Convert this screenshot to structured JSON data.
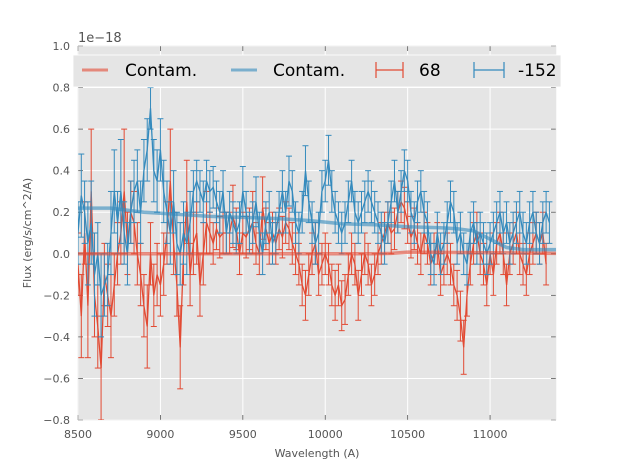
{
  "chart_data": {
    "type": "line",
    "title": "",
    "xlabel": "Wavelength (A)",
    "ylabel": "Flux (erg/s/cm^2/A)",
    "y_offset_label": "1e−18",
    "xlim": [
      8500,
      11400
    ],
    "ylim": [
      -0.8,
      1.0
    ],
    "x_ticks": [
      8500,
      9000,
      9500,
      10000,
      10500,
      11000
    ],
    "x_tick_labels": [
      "8500",
      "9000",
      "9500",
      "10000",
      "10500",
      "11000"
    ],
    "y_ticks": [
      -0.8,
      -0.6,
      -0.4,
      -0.2,
      0.0,
      0.2,
      0.4,
      0.6,
      0.8,
      1.0
    ],
    "y_tick_labels": [
      "−0.8",
      "−0.6",
      "−0.4",
      "−0.2",
      "0.0",
      "0.2",
      "0.4",
      "0.6",
      "0.8",
      "1.0"
    ],
    "grid": true,
    "legend_position": "top",
    "colors": {
      "red": "#E24A33",
      "blue": "#348ABD",
      "background": "#E5E5E5",
      "grid": "#FFFFFF"
    },
    "x_start": 8500,
    "x_step": 20,
    "series": [
      {
        "name": "Contam.",
        "kind": "contamination",
        "color": "#E24A33",
        "x": [
          8500,
          9000,
          9500,
          10000,
          10300,
          10400,
          10500,
          11000,
          11400
        ],
        "y": [
          0.0,
          0.0,
          0.0,
          0.0,
          0.0,
          0.002,
          0.008,
          0.005,
          0.002
        ]
      },
      {
        "name": "Contam.",
        "kind": "contamination",
        "color": "#348ABD",
        "x": [
          8500,
          8700,
          8900,
          9100,
          9300,
          9500,
          9700,
          9900,
          10100,
          10300,
          10500,
          10700,
          10800,
          10900,
          11000,
          11100,
          11200,
          11400
        ],
        "y": [
          0.22,
          0.22,
          0.2,
          0.19,
          0.18,
          0.175,
          0.17,
          0.16,
          0.145,
          0.14,
          0.13,
          0.125,
          0.12,
          0.11,
          0.07,
          0.03,
          0.02,
          0.02
        ]
      },
      {
        "name": "68",
        "kind": "errorbar",
        "color": "#E24A33",
        "y": [
          -0.05,
          -0.3,
          0.1,
          -0.25,
          0.3,
          -0.2,
          -0.35,
          -0.55,
          -0.1,
          -0.2,
          -0.3,
          -0.15,
          0.0,
          0.1,
          0.3,
          0.05,
          0.2,
          0.15,
          0.0,
          -0.1,
          -0.25,
          -0.35,
          0.0,
          -0.2,
          -0.1,
          -0.15,
          -0.05,
          0.1,
          0.35,
          0.05,
          -0.15,
          -0.45,
          0.0,
          0.25,
          -0.1,
          0.05,
          0.1,
          -0.15,
          0.0,
          0.15,
          0.1,
          0.05,
          0.12,
          0.08,
          0.1,
          0.1,
          0.1,
          0.18,
          0.12,
          0.0,
          0.1,
          0.08,
          0.12,
          0.15,
          0.05,
          0.0,
          0.22,
          0.12,
          0.05,
          0.1,
          0.05,
          0.12,
          0.08,
          0.15,
          0.12,
          0.05,
          0.0,
          -0.05,
          -0.15,
          -0.2,
          -0.1,
          0.0,
          0.05,
          -0.1,
          -0.05,
          0.0,
          -0.05,
          -0.15,
          -0.2,
          -0.15,
          -0.25,
          -0.22,
          -0.1,
          0.0,
          -0.05,
          -0.2,
          -0.1,
          0.0,
          -0.05,
          -0.15,
          -0.1,
          0.0,
          0.05,
          0.1,
          0.15,
          0.1,
          0.12,
          0.2,
          0.25,
          0.22,
          0.15,
          0.08,
          0.12,
          0.05,
          0.0,
          0.1,
          0.05,
          -0.05,
          0.0,
          0.05,
          -0.1,
          -0.05,
          0.0,
          -0.05,
          -0.15,
          -0.2,
          -0.3,
          -0.45,
          -0.2,
          -0.05,
          0.05,
          0.1,
          0.0,
          -0.05,
          -0.15,
          0.0,
          -0.1,
          0.05,
          0.1,
          0.0,
          -0.15,
          0.0,
          0.05,
          0.1,
          0.0,
          -0.05,
          -0.1,
          0.0,
          0.05,
          0.1,
          0.05,
          0.1,
          -0.05
        ],
        "yerr": [
          0.15,
          0.2,
          0.15,
          0.25,
          0.3,
          0.2,
          0.2,
          0.25,
          0.15,
          0.15,
          0.2,
          0.15,
          0.15,
          0.15,
          0.3,
          0.15,
          0.15,
          0.15,
          0.15,
          0.15,
          0.15,
          0.2,
          0.15,
          0.15,
          0.15,
          0.15,
          0.15,
          0.15,
          0.25,
          0.15,
          0.15,
          0.2,
          0.15,
          0.2,
          0.15,
          0.15,
          0.15,
          0.15,
          0.15,
          0.15,
          0.1,
          0.1,
          0.1,
          0.1,
          0.1,
          0.1,
          0.1,
          0.15,
          0.1,
          0.1,
          0.1,
          0.1,
          0.1,
          0.15,
          0.1,
          0.1,
          0.15,
          0.1,
          0.1,
          0.1,
          0.1,
          0.1,
          0.1,
          0.1,
          0.1,
          0.1,
          0.1,
          0.1,
          0.1,
          0.12,
          0.1,
          0.1,
          0.1,
          0.1,
          0.1,
          0.1,
          0.1,
          0.1,
          0.12,
          0.1,
          0.12,
          0.12,
          0.1,
          0.1,
          0.1,
          0.12,
          0.1,
          0.1,
          0.1,
          0.1,
          0.1,
          0.1,
          0.1,
          0.1,
          0.1,
          0.1,
          0.1,
          0.1,
          0.1,
          0.1,
          0.1,
          0.1,
          0.1,
          0.1,
          0.1,
          0.1,
          0.1,
          0.1,
          0.1,
          0.1,
          0.1,
          0.1,
          0.1,
          0.1,
          0.1,
          0.12,
          0.12,
          0.13,
          0.1,
          0.1,
          0.1,
          0.1,
          0.1,
          0.1,
          0.1,
          0.1,
          0.1,
          0.1,
          0.1,
          0.1,
          0.1,
          0.1,
          0.1,
          0.1,
          0.1,
          0.1,
          0.1,
          0.1,
          0.1,
          0.1,
          0.1,
          0.1,
          0.1,
          0.1,
          0.1
        ]
      },
      {
        "name": "-152",
        "kind": "errorbar",
        "color": "#348ABD",
        "y": [
          0.1,
          0.28,
          0.2,
          0.05,
          0.15,
          -0.1,
          0.0,
          -0.2,
          -0.15,
          -0.1,
          0.1,
          0.3,
          0.15,
          0.3,
          0.1,
          0.0,
          0.2,
          0.3,
          0.35,
          0.2,
          0.4,
          0.5,
          0.7,
          0.4,
          0.35,
          0.5,
          0.3,
          0.2,
          0.1,
          0.25,
          0.05,
          0.0,
          0.1,
          0.05,
          0.15,
          0.3,
          0.35,
          0.3,
          0.25,
          0.35,
          0.3,
          0.32,
          0.25,
          0.2,
          0.3,
          0.1,
          0.2,
          0.15,
          0.1,
          0.15,
          0.3,
          0.2,
          0.1,
          0.15,
          0.25,
          0.1,
          0.0,
          0.15,
          0.2,
          0.05,
          0.1,
          0.2,
          0.3,
          0.2,
          0.35,
          0.3,
          0.15,
          0.1,
          0.2,
          0.4,
          0.25,
          0.15,
          0.05,
          0.1,
          0.3,
          0.35,
          0.45,
          0.3,
          0.2,
          0.15,
          0.1,
          0.15,
          0.25,
          0.35,
          0.2,
          0.15,
          0.2,
          0.25,
          0.3,
          0.25,
          0.2,
          0.15,
          0.1,
          0.05,
          0.15,
          0.25,
          0.35,
          0.2,
          0.3,
          0.4,
          0.35,
          0.2,
          0.15,
          0.25,
          0.3,
          0.2,
          0.15,
          0.0,
          -0.05,
          0.1,
          0.0,
          0.05,
          0.15,
          0.25,
          0.2,
          0.05,
          0.1,
          0.0,
          -0.05,
          0.1,
          0.15,
          0.05,
          0.1,
          0.05,
          0.0,
          0.05,
          0.1,
          0.15,
          0.2,
          0.1,
          0.15,
          0.05,
          0.1,
          0.15,
          0.2,
          0.1,
          0.05,
          0.15,
          0.2,
          0.1,
          0.05,
          0.15,
          0.2,
          0.15
        ],
        "yerr": [
          0.15,
          0.2,
          0.15,
          0.2,
          0.2,
          0.2,
          0.15,
          0.2,
          0.15,
          0.15,
          0.2,
          0.2,
          0.15,
          0.25,
          0.15,
          0.15,
          0.15,
          0.15,
          0.15,
          0.15,
          0.15,
          0.15,
          0.1,
          0.15,
          0.15,
          0.15,
          0.15,
          0.15,
          0.15,
          0.15,
          0.15,
          0.15,
          0.15,
          0.15,
          0.15,
          0.1,
          0.1,
          0.1,
          0.1,
          0.1,
          0.1,
          0.1,
          0.1,
          0.1,
          0.1,
          0.1,
          0.1,
          0.1,
          0.1,
          0.1,
          0.12,
          0.1,
          0.1,
          0.1,
          0.12,
          0.1,
          0.1,
          0.1,
          0.1,
          0.1,
          0.1,
          0.1,
          0.1,
          0.1,
          0.12,
          0.1,
          0.1,
          0.1,
          0.1,
          0.12,
          0.1,
          0.1,
          0.1,
          0.1,
          0.1,
          0.1,
          0.12,
          0.1,
          0.1,
          0.1,
          0.1,
          0.1,
          0.1,
          0.1,
          0.1,
          0.1,
          0.1,
          0.1,
          0.1,
          0.1,
          0.1,
          0.1,
          0.1,
          0.1,
          0.1,
          0.1,
          0.1,
          0.1,
          0.1,
          0.1,
          0.1,
          0.1,
          0.1,
          0.1,
          0.1,
          0.1,
          0.1,
          0.1,
          0.1,
          0.1,
          0.1,
          0.1,
          0.1,
          0.1,
          0.1,
          0.1,
          0.1,
          0.1,
          0.1,
          0.1,
          0.1,
          0.1,
          0.1,
          0.1,
          0.1,
          0.1,
          0.1,
          0.1,
          0.1,
          0.1,
          0.1,
          0.1,
          0.1,
          0.1,
          0.1,
          0.1,
          0.1,
          0.1,
          0.1,
          0.1,
          0.1,
          0.1,
          0.1,
          0.1,
          0.1
        ]
      }
    ],
    "legend": [
      {
        "label": "Contam.",
        "marker": "line",
        "color": "#E24A33"
      },
      {
        "label": "Contam.",
        "marker": "line",
        "color": "#348ABD"
      },
      {
        "label": "68",
        "marker": "errorbar",
        "color": "#E24A33"
      },
      {
        "label": "-152",
        "marker": "errorbar",
        "color": "#348ABD"
      }
    ]
  }
}
